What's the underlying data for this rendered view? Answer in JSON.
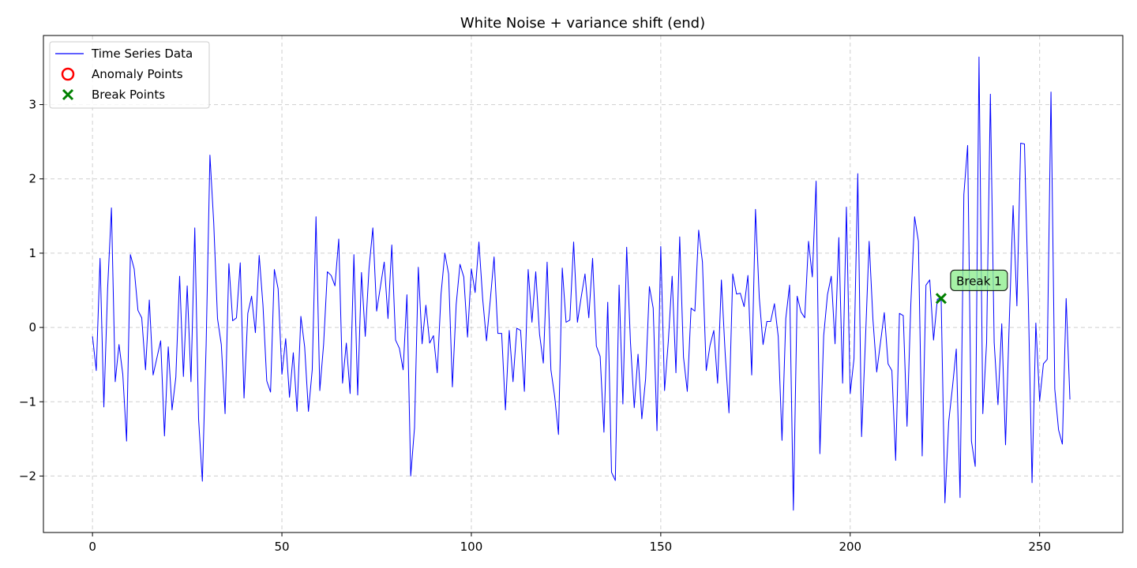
{
  "chart_data": {
    "type": "line",
    "title": "White Noise + variance shift (end)",
    "xlabel": "",
    "ylabel": "",
    "xlim": [
      -12.95,
      271.95
    ],
    "ylim": [
      -2.76,
      3.93
    ],
    "xticks": [
      0,
      50,
      100,
      150,
      200,
      250
    ],
    "yticks": [
      -2,
      -1,
      0,
      1,
      2,
      3
    ],
    "grid": true,
    "legend_position": "top-left",
    "legend": [
      {
        "label": "Time Series Data",
        "marker": "line",
        "color": "#0000ff"
      },
      {
        "label": "Anomaly Points",
        "marker": "circle",
        "color": "#ff0000"
      },
      {
        "label": "Break Points",
        "marker": "x",
        "color": "#008000"
      }
    ],
    "series": [
      {
        "name": "Time Series Data",
        "color": "#0000ff",
        "x_start": 0,
        "x_step": 1,
        "values": [
          -0.12,
          -0.58,
          0.93,
          -1.07,
          0.53,
          1.61,
          -0.73,
          -0.23,
          -0.63,
          -1.53,
          0.98,
          0.79,
          0.23,
          0.13,
          -0.57,
          0.37,
          -0.64,
          -0.41,
          -0.18,
          -1.46,
          -0.26,
          -1.11,
          -0.67,
          0.69,
          -0.66,
          0.56,
          -0.73,
          1.34,
          -1.23,
          -2.07,
          -0.23,
          2.32,
          1.41,
          0.12,
          -0.23,
          -1.16,
          0.86,
          0.09,
          0.13,
          0.87,
          -0.95,
          0.19,
          0.42,
          -0.07,
          0.97,
          0.3,
          -0.72,
          -0.87,
          0.78,
          0.52,
          -0.63,
          -0.15,
          -0.94,
          -0.34,
          -1.13,
          0.15,
          -0.26,
          -1.13,
          -0.57,
          1.49,
          -0.85,
          -0.23,
          0.75,
          0.7,
          0.56,
          1.19,
          -0.75,
          -0.21,
          -0.89,
          0.98,
          -0.91,
          0.74,
          -0.12,
          0.8,
          1.34,
          0.22,
          0.55,
          0.88,
          0.12,
          1.11,
          -0.17,
          -0.28,
          -0.57,
          0.44,
          -2.0,
          -1.35,
          0.81,
          -0.22,
          0.3,
          -0.21,
          -0.11,
          -0.61,
          0.45,
          1.0,
          0.72,
          -0.8,
          0.31,
          0.85,
          0.68,
          -0.13,
          0.79,
          0.47,
          1.15,
          0.38,
          -0.18,
          0.37,
          0.95,
          -0.08,
          -0.08,
          -1.11,
          -0.04,
          -0.73,
          -0.01,
          -0.04,
          -0.86,
          0.78,
          0.07,
          0.75,
          -0.09,
          -0.48,
          0.88,
          -0.57,
          -0.93,
          -1.44,
          0.8,
          0.07,
          0.1,
          1.15,
          0.07,
          0.41,
          0.72,
          0.13,
          0.93,
          -0.25,
          -0.39,
          -1.41,
          0.34,
          -1.95,
          -2.06,
          0.57,
          -1.03,
          1.08,
          -0.2,
          -1.08,
          -0.36,
          -1.23,
          -0.69,
          0.55,
          0.26,
          -1.39,
          1.09,
          -0.85,
          -0.18,
          0.69,
          -0.61,
          1.22,
          -0.4,
          -0.86,
          0.26,
          0.22,
          1.31,
          0.88,
          -0.58,
          -0.24,
          -0.04,
          -0.75,
          0.64,
          -0.35,
          -1.15,
          0.72,
          0.45,
          0.46,
          0.28,
          0.7,
          -0.64,
          1.59,
          0.4,
          -0.23,
          0.08,
          0.08,
          0.32,
          -0.12,
          -1.52,
          0.12,
          0.57,
          -2.46,
          0.42,
          0.21,
          0.13,
          1.16,
          0.68,
          1.97,
          -1.7,
          -0.11,
          0.44,
          0.69,
          -0.22,
          1.21,
          -0.75,
          1.62,
          -0.89,
          -0.42,
          2.07,
          -1.47,
          -0.2,
          1.16,
          0.11,
          -0.6,
          -0.2,
          0.2,
          -0.49,
          -0.58,
          -1.79,
          0.19,
          0.16,
          -1.33,
          0.31,
          1.49,
          1.16,
          -1.73,
          0.57,
          0.64,
          -0.17,
          0.38,
          0.4,
          -2.36,
          -1.27,
          -0.8,
          -0.29,
          -2.29,
          1.79,
          2.45,
          -1.53,
          -1.87,
          3.64,
          -1.16,
          -0.2,
          3.14,
          -0.2,
          -1.04,
          0.05,
          -1.58,
          0.1,
          1.64,
          0.29,
          2.48,
          2.47,
          0.4,
          -2.09,
          0.06,
          -0.99,
          -0.49,
          -0.43,
          3.17,
          -0.83,
          -1.38,
          -1.57,
          0.39,
          -0.97
        ]
      }
    ],
    "anomaly_points": [],
    "break_points": [
      {
        "x": 224,
        "y": 0.39,
        "label": "Break 1"
      }
    ]
  }
}
